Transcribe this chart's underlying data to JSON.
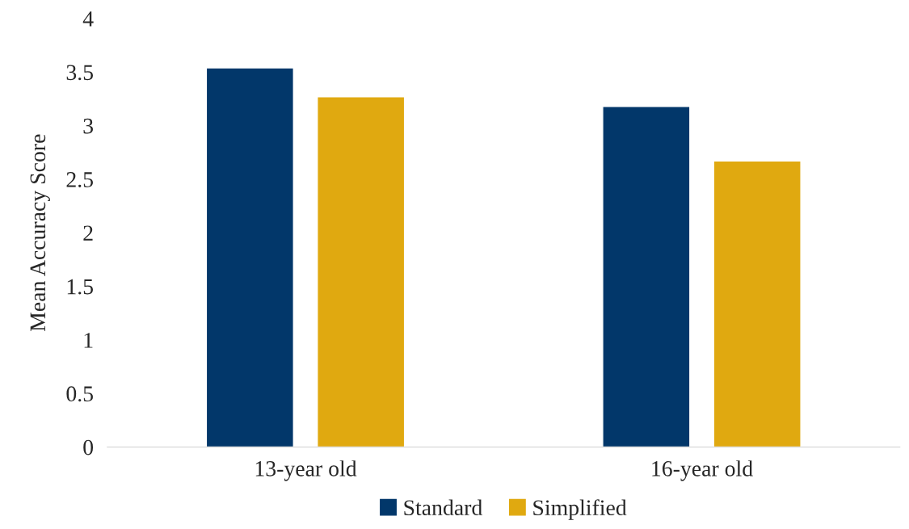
{
  "chart_data": {
    "type": "bar",
    "ylabel": "Mean Accuracy Score",
    "categories": [
      "13-year old",
      "16-year old"
    ],
    "series": [
      {
        "name": "Standard",
        "color": "#02376a",
        "values": [
          3.54,
          3.18
        ]
      },
      {
        "name": "Simplified",
        "color": "#e0a910",
        "values": [
          3.27,
          2.67
        ]
      }
    ],
    "ylim": [
      0,
      4
    ],
    "yticks": [
      0,
      0.5,
      1,
      1.5,
      2,
      2.5,
      3,
      3.5,
      4
    ],
    "grid": false,
    "legend": "bottom"
  }
}
